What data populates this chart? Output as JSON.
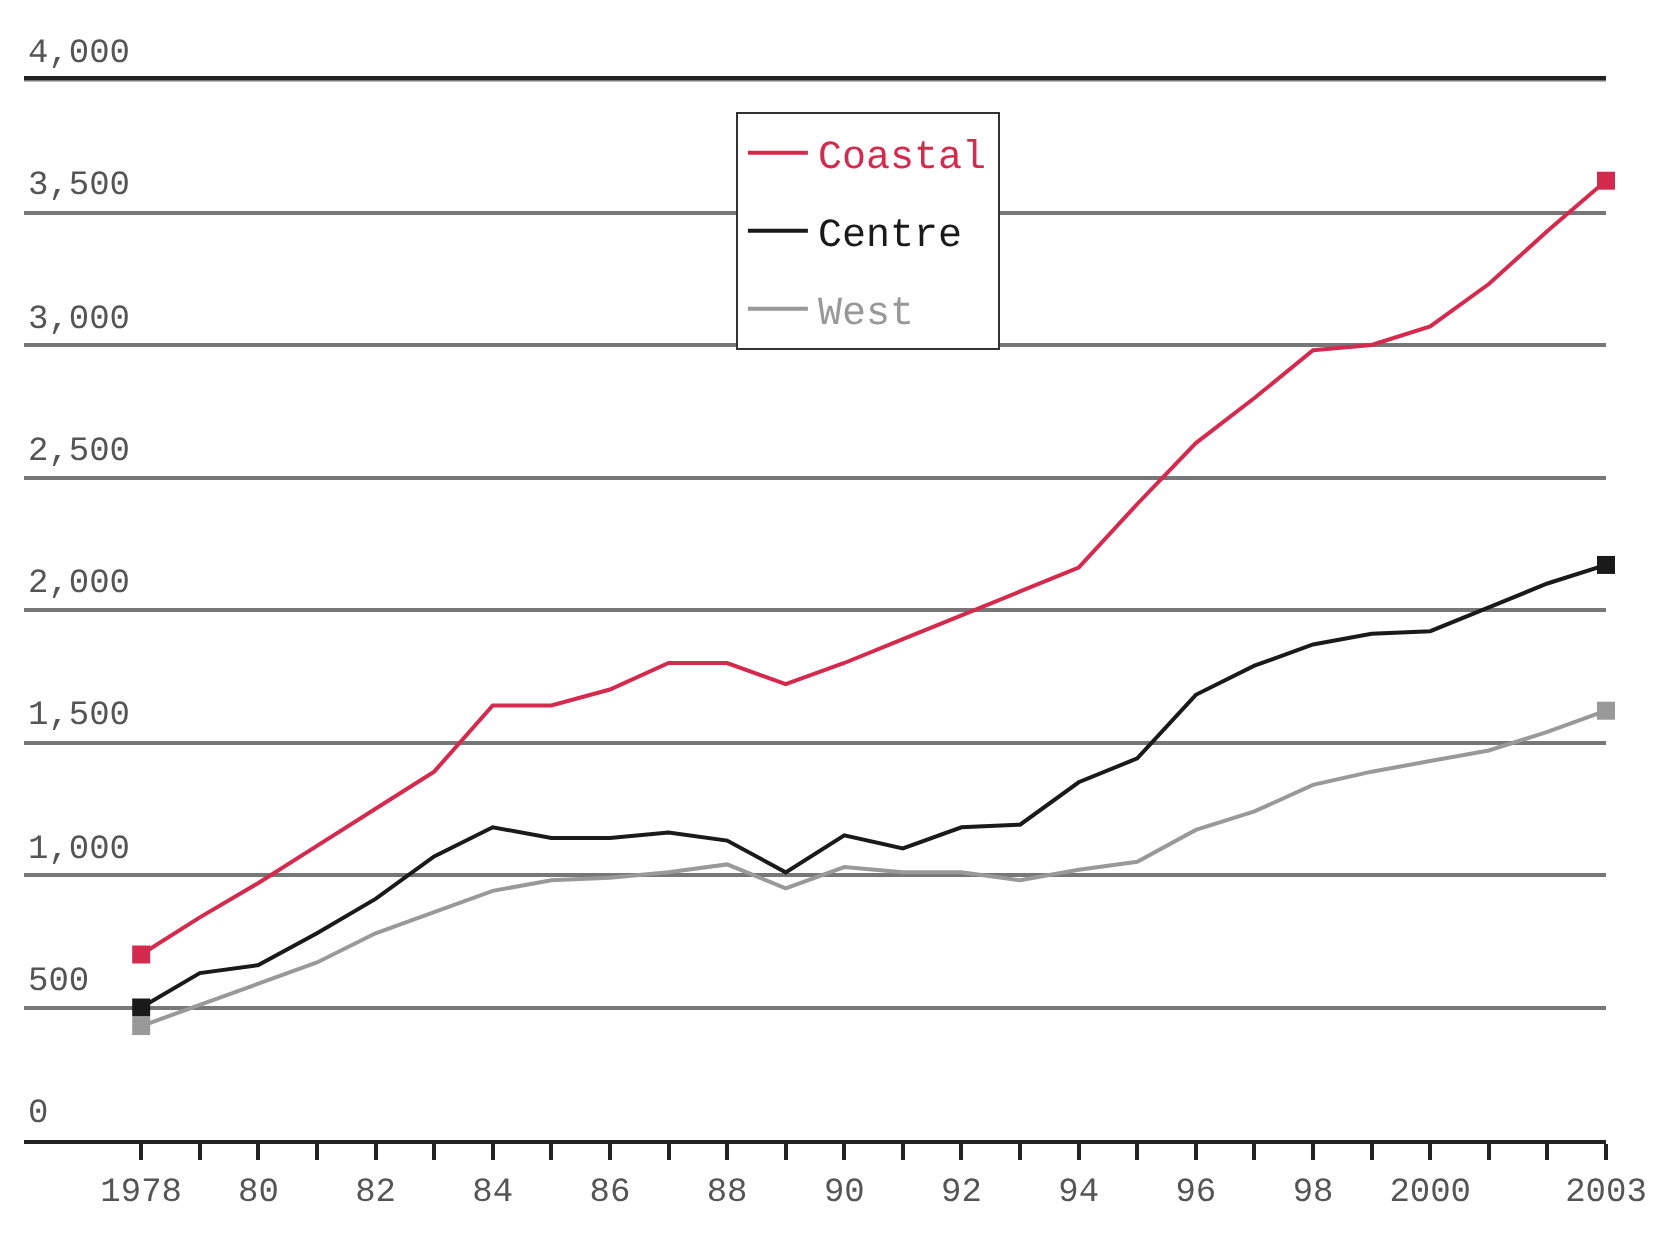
{
  "chart_data": {
    "type": "line",
    "x": [
      1978,
      1979,
      1980,
      1981,
      1982,
      1983,
      1984,
      1985,
      1986,
      1987,
      1988,
      1989,
      1990,
      1991,
      1992,
      1993,
      1994,
      1995,
      1996,
      1997,
      1998,
      1999,
      2000,
      2001,
      2002,
      2003
    ],
    "series": [
      {
        "name": "Coastal",
        "color": "#d42a4e",
        "values": [
          700,
          840,
          970,
          1110,
          1250,
          1390,
          1640,
          1640,
          1700,
          1800,
          1800,
          1720,
          1800,
          1890,
          1980,
          2070,
          2160,
          2400,
          2630,
          2800,
          2980,
          3000,
          3070,
          3230,
          3430,
          3620
        ]
      },
      {
        "name": "Centre",
        "color": "#1a1a1a",
        "values": [
          500,
          630,
          660,
          780,
          910,
          1070,
          1180,
          1140,
          1140,
          1160,
          1130,
          1010,
          1150,
          1100,
          1180,
          1190,
          1350,
          1440,
          1680,
          1790,
          1870,
          1910,
          1920,
          2010,
          2100,
          2170
        ]
      },
      {
        "name": "West",
        "color": "#999999",
        "values": [
          430,
          510,
          590,
          670,
          780,
          860,
          940,
          980,
          990,
          1010,
          1040,
          950,
          1030,
          1010,
          1010,
          980,
          1020,
          1050,
          1170,
          1240,
          1340,
          1390,
          1430,
          1470,
          1540,
          1620
        ]
      }
    ],
    "xlim": [
      1976,
      2003
    ],
    "xticks": [
      {
        "value": 1978,
        "label": "1978"
      },
      {
        "value": 1979,
        "label": null
      },
      {
        "value": 1980,
        "label": "80"
      },
      {
        "value": 1981,
        "label": null
      },
      {
        "value": 1982,
        "label": "82"
      },
      {
        "value": 1983,
        "label": null
      },
      {
        "value": 1984,
        "label": "84"
      },
      {
        "value": 1985,
        "label": null
      },
      {
        "value": 1986,
        "label": "86"
      },
      {
        "value": 1987,
        "label": null
      },
      {
        "value": 1988,
        "label": "88"
      },
      {
        "value": 1989,
        "label": null
      },
      {
        "value": 1990,
        "label": "90"
      },
      {
        "value": 1991,
        "label": null
      },
      {
        "value": 1992,
        "label": "92"
      },
      {
        "value": 1993,
        "label": null
      },
      {
        "value": 1994,
        "label": "94"
      },
      {
        "value": 1995,
        "label": null
      },
      {
        "value": 1996,
        "label": "96"
      },
      {
        "value": 1997,
        "label": null
      },
      {
        "value": 1998,
        "label": "98"
      },
      {
        "value": 1999,
        "label": null
      },
      {
        "value": 2000,
        "label": "2000"
      },
      {
        "value": 2001,
        "label": null
      },
      {
        "value": 2002,
        "label": null
      },
      {
        "value": 2003,
        "label": "2003"
      }
    ],
    "ylim": [
      0,
      4000
    ],
    "yticks": [
      {
        "value": 0,
        "label": "0"
      },
      {
        "value": 500,
        "label": "500"
      },
      {
        "value": 1000,
        "label": "1,000"
      },
      {
        "value": 1500,
        "label": "1,500"
      },
      {
        "value": 2000,
        "label": "2,000"
      },
      {
        "value": 2500,
        "label": "2,500"
      },
      {
        "value": 3000,
        "label": "3,000"
      },
      {
        "value": 3500,
        "label": "3,500"
      },
      {
        "value": 4000,
        "label": "4,000"
      }
    ],
    "grid": "y",
    "legend": "top",
    "line_style": "solid"
  }
}
